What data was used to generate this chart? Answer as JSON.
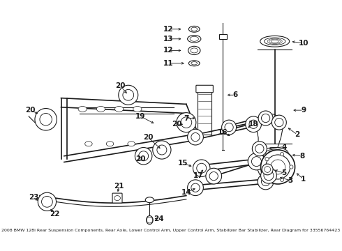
{
  "title": "2008 BMW 128i Rear Suspension Components",
  "subtitle": "Rear Axle, Lower Control Arm, Upper Control Arm, Stabilizer Bar Stabilizer, Rear",
  "part_number": "Diagram for 33556764423",
  "bg_color": "#ffffff",
  "line_color": "#1a1a1a",
  "label_color": "#1a1a1a",
  "figsize": [
    4.9,
    3.6
  ],
  "dpi": 100,
  "footer": "2008 BMW 128i Rear Suspension Components, Rear Axle, Lower Control Arm, Upper Control Arm, Stabilizer Bar Stabilizer, Rear Diagram for 33556764423"
}
